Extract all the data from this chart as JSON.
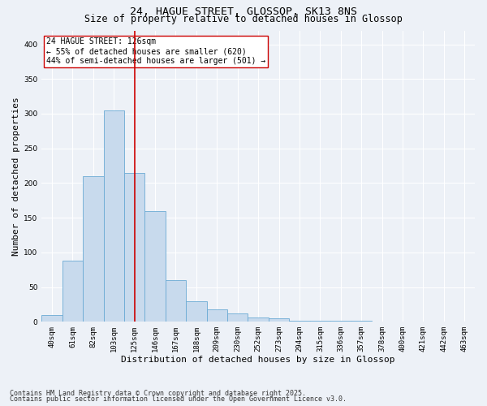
{
  "title_line1": "24, HAGUE STREET, GLOSSOP, SK13 8NS",
  "title_line2": "Size of property relative to detached houses in Glossop",
  "xlabel": "Distribution of detached houses by size in Glossop",
  "ylabel": "Number of detached properties",
  "bar_labels": [
    "40sqm",
    "61sqm",
    "82sqm",
    "103sqm",
    "125sqm",
    "146sqm",
    "167sqm",
    "188sqm",
    "209sqm",
    "230sqm",
    "252sqm",
    "273sqm",
    "294sqm",
    "315sqm",
    "336sqm",
    "357sqm",
    "378sqm",
    "400sqm",
    "421sqm",
    "442sqm",
    "463sqm"
  ],
  "bar_values": [
    10,
    88,
    210,
    305,
    215,
    160,
    60,
    30,
    18,
    12,
    6,
    5,
    2,
    2,
    1,
    1,
    0,
    0,
    0,
    0,
    0
  ],
  "bar_color": "#c8daed",
  "bar_edgecolor": "#6aaad4",
  "vline_x_index": 4.0,
  "vline_color": "#cc0000",
  "annotation_text": "24 HAGUE STREET: 126sqm\n← 55% of detached houses are smaller (620)\n44% of semi-detached houses are larger (501) →",
  "annotation_box_edgecolor": "#cc0000",
  "ylim": [
    0,
    420
  ],
  "yticks": [
    0,
    50,
    100,
    150,
    200,
    250,
    300,
    350,
    400
  ],
  "background_color": "#edf1f7",
  "plot_bg_color": "#edf1f7",
  "footer_line1": "Contains HM Land Registry data © Crown copyright and database right 2025.",
  "footer_line2": "Contains public sector information licensed under the Open Government Licence v3.0.",
  "title_fontsize": 9.5,
  "subtitle_fontsize": 8.5,
  "tick_fontsize": 6.5,
  "xlabel_fontsize": 8,
  "ylabel_fontsize": 8,
  "annotation_fontsize": 7,
  "footer_fontsize": 6
}
